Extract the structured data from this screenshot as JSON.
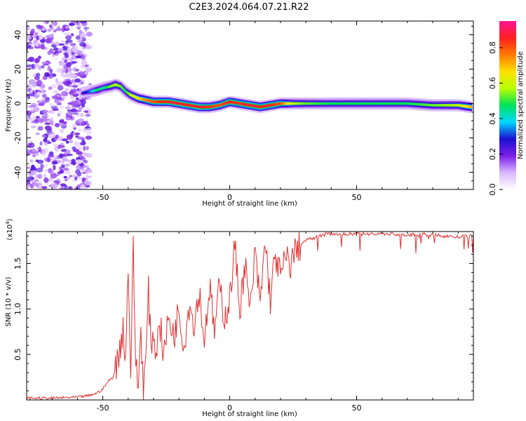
{
  "title": "C2E3.2024.064.07.21.R22",
  "colors": {
    "snr_line": "#e03131",
    "colormap": [
      "#ffffff",
      "#d9b8ff",
      "#7a1ee6",
      "#1a10d0",
      "#00d8ff",
      "#00e25a",
      "#b8ff00",
      "#ffe000",
      "#ff7a00",
      "#ff2020",
      "#ff1493"
    ]
  },
  "chart_data": [
    {
      "type": "heatmap",
      "xlabel": "Height of straight line (km)",
      "ylabel": "Frequency (Hz)",
      "xlim": [
        -80,
        96
      ],
      "ylim": [
        -50,
        48
      ],
      "xticks": [
        -50,
        0,
        50
      ],
      "yticks": [
        -40,
        -20,
        0,
        20,
        40
      ],
      "colorbar": {
        "label": "Normalized spectral amplitude",
        "range": [
          0,
          0.95
        ],
        "ticks": [
          0.0,
          0.2,
          0.4,
          0.6,
          0.8
        ]
      },
      "noise_region_x": [
        -80,
        -55
      ],
      "ridge": {
        "x": [
          -58,
          -55,
          -52,
          -50,
          -47,
          -45,
          -43,
          -41,
          -39,
          -36,
          -33,
          -30,
          -27,
          -24,
          -20,
          -16,
          -12,
          -8,
          -4,
          0,
          4,
          8,
          12,
          16,
          20,
          25,
          30,
          40,
          50,
          60,
          70,
          80,
          90,
          95
        ],
        "y": [
          6,
          7,
          8,
          9,
          10,
          11,
          10,
          7,
          5,
          3,
          2,
          1,
          1,
          1,
          0,
          -1,
          -2,
          -2,
          -1,
          1,
          0,
          -1,
          -2,
          -1,
          0,
          0,
          0,
          0,
          0,
          0,
          0,
          -1,
          -1,
          -2
        ],
        "amplitude": [
          0.25,
          0.35,
          0.5,
          0.45,
          0.55,
          0.6,
          0.55,
          0.5,
          0.6,
          0.7,
          0.8,
          0.85,
          0.9,
          0.9,
          0.92,
          0.9,
          0.92,
          0.88,
          0.85,
          0.9,
          0.88,
          0.92,
          0.9,
          0.9,
          0.85,
          0.6,
          0.55,
          0.5,
          0.5,
          0.5,
          0.5,
          0.55,
          0.6,
          0.75
        ]
      }
    },
    {
      "type": "line",
      "xlabel": "Height of straight line (km)",
      "ylabel": "SNR (10 * v/v)",
      "y_scale_label": "(x10",
      "y_scale_exp": "4",
      "xlim": [
        -80,
        96
      ],
      "ylim": [
        0,
        1.85
      ],
      "xticks": [
        -50,
        0,
        50
      ],
      "yticks": [
        0.5,
        1.0,
        1.5
      ],
      "ytick_labels": [
        "0.5",
        "1.0",
        "1.5"
      ],
      "series": [
        {
          "x": [
            -80,
            -70,
            -60,
            -55,
            -52,
            -50,
            -48,
            -46,
            -44,
            -42,
            -41,
            -40,
            -39,
            -38,
            -37,
            -36,
            -35,
            -34,
            -33,
            -32,
            -31,
            -30,
            -29,
            -28,
            -26,
            -24,
            -22,
            -20,
            -18,
            -16,
            -14,
            -12,
            -10,
            -8,
            -6,
            -4,
            -2,
            0,
            2,
            4,
            6,
            8,
            10,
            12,
            14,
            16,
            18,
            20,
            22,
            24,
            26,
            28,
            30,
            35,
            40,
            45,
            50,
            55,
            60,
            65,
            70,
            75,
            80,
            85,
            90,
            96
          ],
          "y": [
            0.02,
            0.02,
            0.03,
            0.05,
            0.08,
            0.12,
            0.2,
            0.25,
            0.45,
            0.8,
            0.45,
            1.5,
            0.3,
            1.65,
            0.4,
            0.15,
            0.8,
            0.12,
            0.45,
            1.2,
            0.55,
            0.8,
            0.4,
            0.95,
            0.5,
            0.9,
            0.7,
            1.0,
            0.6,
            1.05,
            0.85,
            1.2,
            0.65,
            1.25,
            0.75,
            1.25,
            0.9,
            1.1,
            1.7,
            1.0,
            1.5,
            0.95,
            1.6,
            1.05,
            1.75,
            1.1,
            1.6,
            1.35,
            1.55,
            1.5,
            1.65,
            1.7,
            1.75,
            1.8,
            1.83,
            1.82,
            1.83,
            1.82,
            1.83,
            1.82,
            1.81,
            1.82,
            1.81,
            1.8,
            1.79,
            1.8
          ]
        }
      ]
    }
  ]
}
